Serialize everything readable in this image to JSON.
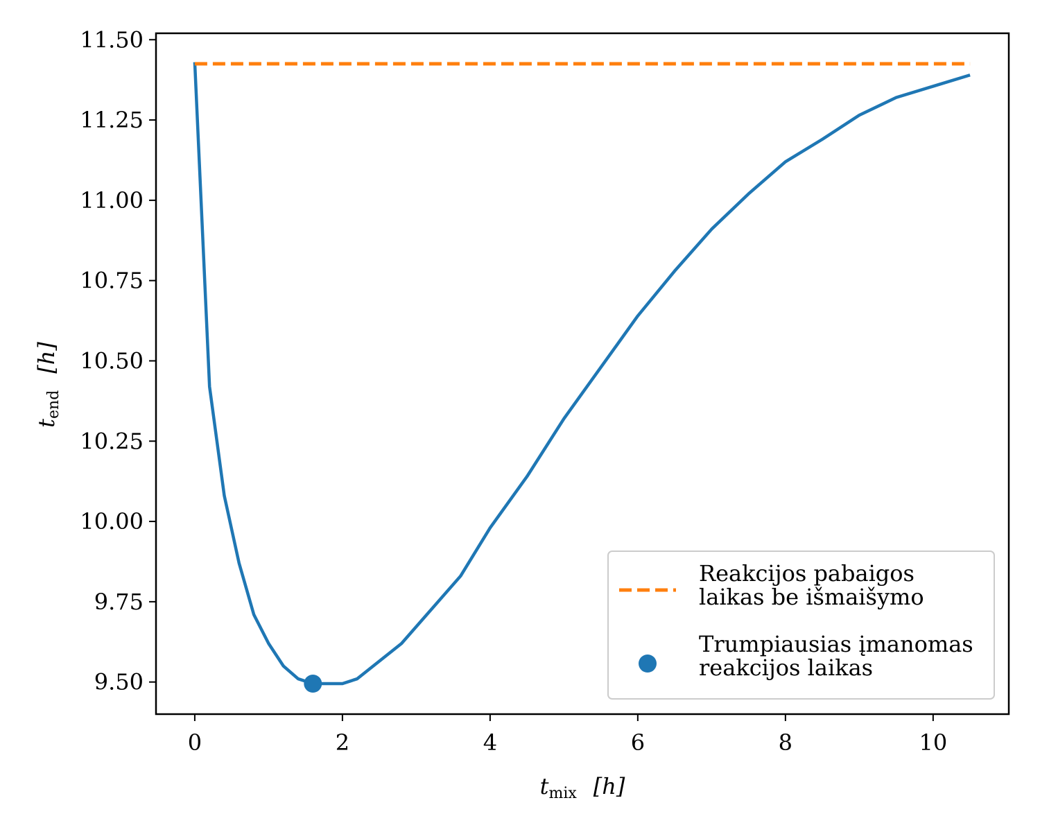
{
  "chart_data": {
    "type": "line",
    "xlabel": {
      "symbol": "t",
      "subscript": "mix",
      "unit": "[h]"
    },
    "ylabel": {
      "symbol": "t",
      "subscript": "end",
      "unit": "[h]"
    },
    "xlim": [
      -0.525,
      11.025
    ],
    "ylim": [
      9.4,
      11.52
    ],
    "x_ticks": [
      "0",
      "2",
      "4",
      "6",
      "8",
      "10"
    ],
    "y_ticks": [
      "9.50",
      "9.75",
      "10.00",
      "10.25",
      "10.50",
      "10.75",
      "11.00",
      "11.25",
      "11.50"
    ],
    "grid": false,
    "legend_position": "lower-right",
    "series": [
      {
        "kind": "line",
        "color": "#1f77b4",
        "x": [
          0.0,
          0.2,
          0.4,
          0.6,
          0.8,
          1.0,
          1.2,
          1.4,
          1.6,
          1.8,
          2.0,
          2.2,
          2.8,
          3.6,
          4.0,
          4.5,
          5.0,
          6.0,
          6.5,
          7.0,
          7.5,
          8.0,
          8.5,
          9.0,
          9.5,
          10.0,
          10.5
        ],
        "y": [
          11.43,
          10.42,
          10.08,
          9.87,
          9.71,
          9.62,
          9.55,
          9.51,
          9.495,
          9.495,
          9.495,
          9.51,
          9.62,
          9.83,
          9.98,
          10.14,
          10.32,
          10.64,
          10.78,
          10.91,
          11.02,
          11.12,
          11.19,
          11.265,
          11.32,
          11.355,
          11.39
        ]
      },
      {
        "kind": "dashed-line",
        "name": "Reakcijos pabaigos laikas be išmaišymo",
        "legend_lines": [
          "Reakcijos pabaigos",
          "laikas be išmaišymo"
        ],
        "color": "#ff7f0e",
        "x": [
          0.0,
          10.5
        ],
        "y": [
          11.425,
          11.425
        ]
      },
      {
        "kind": "point",
        "name": "Trumpiausias įmanomas reakcijos laikas",
        "legend_lines": [
          "Trumpiausias įmanomas",
          "reakcijos laikas"
        ],
        "color": "#1f77b4",
        "x": [
          1.6
        ],
        "y": [
          9.495
        ]
      }
    ]
  }
}
